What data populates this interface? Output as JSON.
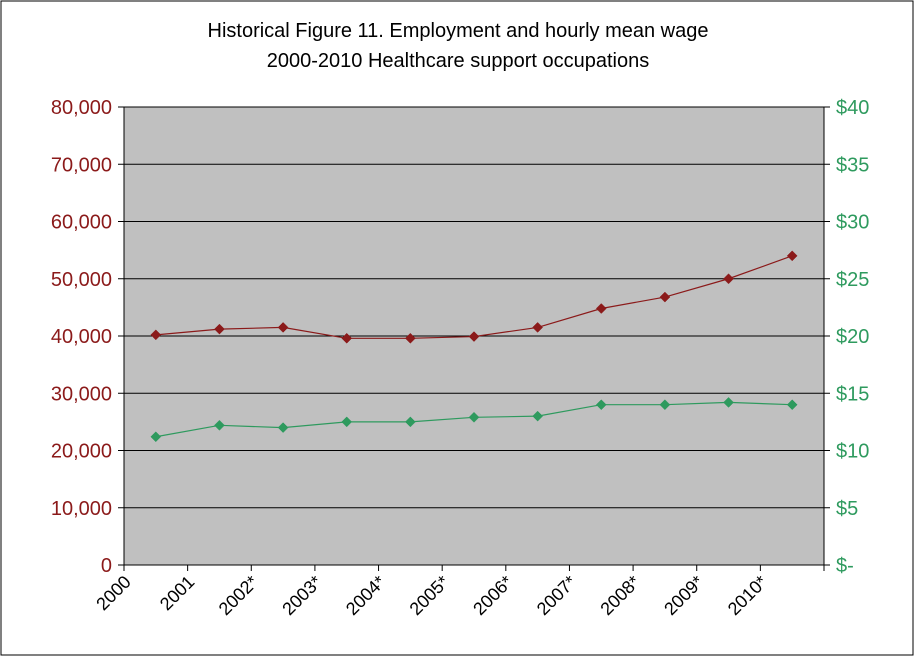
{
  "chart_data": {
    "type": "line",
    "title_lines": [
      "Historical Figure 11. Employment and hourly mean wage",
      "2000-2010 Healthcare support occupations"
    ],
    "categories": [
      "2000",
      "2001",
      "2002*",
      "2003*",
      "2004*",
      "2005*",
      "2006*",
      "2007*",
      "2008*",
      "2009*",
      "2010*"
    ],
    "y_left": {
      "min": 0,
      "max": 80000,
      "step": 10000,
      "tick_labels": [
        "0",
        "10,000",
        "20,000",
        "30,000",
        "40,000",
        "50,000",
        "60,000",
        "70,000",
        "80,000"
      ],
      "color": "#8b1a1a"
    },
    "y_right": {
      "min": 0,
      "max": 40,
      "step": 5,
      "tick_labels": [
        "$-",
        "$5",
        "$10",
        "$15",
        "$20",
        "$25",
        "$30",
        "$35",
        "$40"
      ],
      "color": "#2e9a5e"
    },
    "series": [
      {
        "axis": "left",
        "color": "#8b1a1a",
        "marker": "diamond",
        "values": [
          40200,
          41200,
          41500,
          39600,
          39600,
          39900,
          41500,
          44800,
          46800,
          50000,
          54000
        ]
      },
      {
        "axis": "right",
        "color": "#2e9a5e",
        "marker": "diamond",
        "values": [
          11.2,
          12.2,
          12.0,
          12.5,
          12.5,
          12.9,
          13.0,
          14.0,
          14.0,
          14.2,
          14.0
        ]
      }
    ],
    "grid": "horizontal",
    "plot_background": "#c0c0c0",
    "legend": "none"
  }
}
